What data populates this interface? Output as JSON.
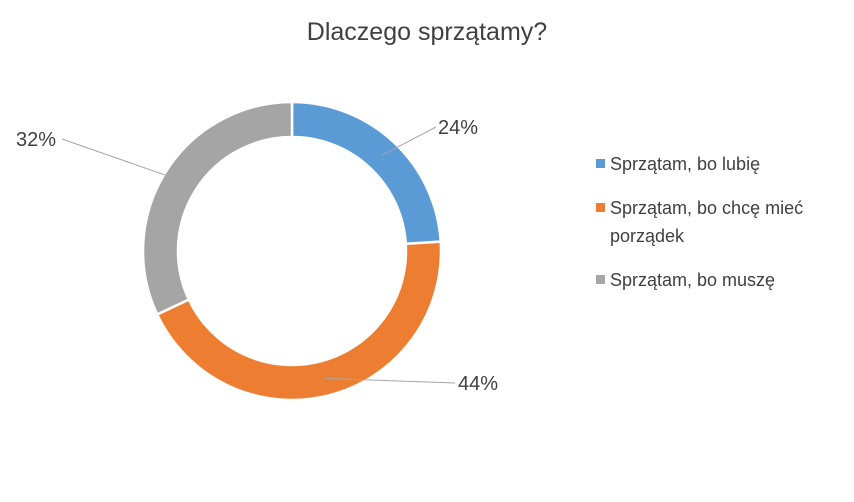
{
  "chart_data": {
    "type": "pie",
    "title": "Dlaczego sprzątamy?",
    "donut": true,
    "legend_position": "right",
    "categories": [
      "Sprzątam, bo lubię",
      "Sprzątam, bo chcę mieć porządek",
      "Sprzątam, bo muszę"
    ],
    "values": [
      24,
      44,
      32
    ],
    "value_labels": [
      "24%",
      "44%",
      "32%"
    ],
    "colors": [
      "#5B9BD5",
      "#ED7D31",
      "#A5A5A5"
    ]
  }
}
